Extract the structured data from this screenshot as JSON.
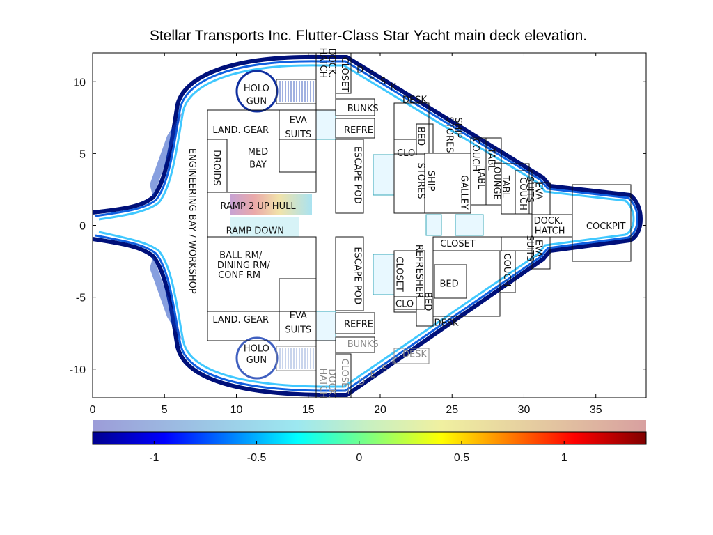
{
  "title": "Stellar Transports Inc. Flutter-Class Star Yacht main deck elevation.",
  "axes": {
    "xlim": [
      0,
      38.5
    ],
    "ylim": [
      -12,
      12
    ],
    "x_ticks": [
      0,
      5,
      10,
      15,
      20,
      25,
      30,
      35
    ],
    "y_ticks": [
      10,
      5,
      0,
      -5,
      -10
    ]
  },
  "colorbar": {
    "range": [
      -1.3,
      1.4
    ],
    "ticks": [
      -1,
      -0.5,
      0,
      0.5,
      1
    ],
    "colormap": "jet"
  },
  "colors": {
    "hull_dark": "#00107a",
    "hull_mid": "#1060e0",
    "hull_light": "#40c8ff",
    "hatch": "#38a8b8",
    "wall": "#000000"
  },
  "labels": [
    {
      "text": "HOLO",
      "x": 11.4,
      "y": 9.5,
      "rot": 0
    },
    {
      "text": "GUN",
      "x": 11.4,
      "y": 8.6,
      "rot": 0
    },
    {
      "text": "LAND. GEAR",
      "x": 10.3,
      "y": 6.6,
      "rot": 0
    },
    {
      "text": "EVA",
      "x": 14.3,
      "y": 7.3,
      "rot": 0
    },
    {
      "text": "SUITS",
      "x": 14.3,
      "y": 6.3,
      "rot": 0
    },
    {
      "text": "MED",
      "x": 11.5,
      "y": 5.1,
      "rot": 0
    },
    {
      "text": "BAY",
      "x": 11.5,
      "y": 4.2,
      "rot": 0
    },
    {
      "text": "DROIDS",
      "x": 8.6,
      "y": 4.0,
      "rot": 90
    },
    {
      "text": "ENGINEERING BAY / WORKSHOP",
      "x": 6.9,
      "y": 0.3,
      "rot": 90
    },
    {
      "text": "RAMP 2 UP HULL",
      "x": 11.5,
      "y": 1.3,
      "rot": 0
    },
    {
      "text": "RAMP DOWN",
      "x": 11.3,
      "y": -0.4,
      "rot": 0
    },
    {
      "text": "BALL RM/",
      "x": 10.3,
      "y": -2.1,
      "rot": 0
    },
    {
      "text": "DINING RM/",
      "x": 10.5,
      "y": -2.8,
      "rot": 0
    },
    {
      "text": "CONF RM",
      "x": 10.2,
      "y": -3.5,
      "rot": 0
    },
    {
      "text": "LAND. GEAR",
      "x": 10.3,
      "y": -6.6,
      "rot": 0
    },
    {
      "text": "EVA",
      "x": 14.3,
      "y": -6.3,
      "rot": 0
    },
    {
      "text": "SUITS",
      "x": 14.3,
      "y": -7.3,
      "rot": 0
    },
    {
      "text": "HOLO",
      "x": 11.4,
      "y": -8.6,
      "rot": 0
    },
    {
      "text": "GUN",
      "x": 11.4,
      "y": -9.4,
      "rot": 0
    },
    {
      "text": "DOCK.",
      "x": 16.6,
      "y": 11.3,
      "rot": 90
    },
    {
      "text": "HATCH",
      "x": 16.0,
      "y": 11.3,
      "rot": 90
    },
    {
      "text": "CLOSET",
      "x": 17.5,
      "y": 10.5,
      "rot": 90
    },
    {
      "text": "D",
      "x": 18.6,
      "y": 10.8,
      "rot": 0
    },
    {
      "text": "E",
      "x": 19.4,
      "y": 10.4,
      "rot": 0
    },
    {
      "text": "S",
      "x": 20.2,
      "y": 10.0,
      "rot": 0
    },
    {
      "text": "K",
      "x": 20.9,
      "y": 9.6,
      "rot": 0
    },
    {
      "text": "DESK",
      "x": 22.4,
      "y": 8.7,
      "rot": 0
    },
    {
      "text": "BUNKS",
      "x": 18.8,
      "y": 8.1,
      "rot": 0
    },
    {
      "text": "REFRE",
      "x": 18.5,
      "y": 6.6,
      "rot": 0
    },
    {
      "text": "BED",
      "x": 22.8,
      "y": 6.2,
      "rot": 90
    },
    {
      "text": "SHIP",
      "x": 25.4,
      "y": 6.8,
      "rot": 90
    },
    {
      "text": "STORES",
      "x": 24.8,
      "y": 6.3,
      "rot": 90
    },
    {
      "text": "CLO",
      "x": 21.8,
      "y": 5.0,
      "rot": 0
    },
    {
      "text": "ESCAPE POD",
      "x": 18.4,
      "y": 3.5,
      "rot": 90
    },
    {
      "text": "SHIP",
      "x": 23.5,
      "y": 3.1,
      "rot": 90
    },
    {
      "text": "STORES",
      "x": 22.8,
      "y": 3.1,
      "rot": 90
    },
    {
      "text": "GALLEY",
      "x": 25.8,
      "y": 2.3,
      "rot": 90
    },
    {
      "text": "COUCH",
      "x": 26.6,
      "y": 4.9,
      "rot": 90
    },
    {
      "text": "TABL",
      "x": 27.7,
      "y": 4.6,
      "rot": 90
    },
    {
      "text": "TABL",
      "x": 27.0,
      "y": 3.3,
      "rot": 90
    },
    {
      "text": "TABL",
      "x": 28.7,
      "y": 2.7,
      "rot": 90
    },
    {
      "text": "LOUNGE",
      "x": 28.1,
      "y": 3.1,
      "rot": 90
    },
    {
      "text": "COUCH",
      "x": 29.9,
      "y": 2.2,
      "rot": 90
    },
    {
      "text": "EVA",
      "x": 31.0,
      "y": 2.4,
      "rot": 90
    },
    {
      "text": "SUITS",
      "x": 30.4,
      "y": 2.5,
      "rot": 90
    },
    {
      "text": "DOCK.",
      "x": 31.7,
      "y": 0.3,
      "rot": 0
    },
    {
      "text": "HATCH",
      "x": 31.8,
      "y": -0.4,
      "rot": 0
    },
    {
      "text": "COCKPIT",
      "x": 35.7,
      "y": -0.1,
      "rot": 0
    },
    {
      "text": "CLOSET",
      "x": 25.4,
      "y": -1.3,
      "rot": 0
    },
    {
      "text": "ESCAPE POD",
      "x": 18.4,
      "y": -3.5,
      "rot": 90
    },
    {
      "text": "REFRESHER",
      "x": 22.7,
      "y": -3.2,
      "rot": 90
    },
    {
      "text": "CLOSET",
      "x": 21.3,
      "y": -3.4,
      "rot": 90
    },
    {
      "text": "CLO",
      "x": 21.7,
      "y": -5.5,
      "rot": 0
    },
    {
      "text": "BED",
      "x": 23.3,
      "y": -5.3,
      "rot": 90
    },
    {
      "text": "BED",
      "x": 24.8,
      "y": -4.1,
      "rot": 0
    },
    {
      "text": "COUCH",
      "x": 28.8,
      "y": -3.1,
      "rot": 90
    },
    {
      "text": "EVA",
      "x": 31.0,
      "y": -1.6,
      "rot": 90
    },
    {
      "text": "SUITS",
      "x": 30.4,
      "y": -1.6,
      "rot": 90
    },
    {
      "text": "REFRE",
      "x": 18.5,
      "y": -6.9,
      "rot": 0
    },
    {
      "text": "DESK",
      "x": 24.6,
      "y": -6.8,
      "rot": 0
    },
    {
      "text": "BUNKS",
      "x": 18.8,
      "y": -8.3,
      "rot": 0,
      "dim": true
    },
    {
      "text": "DESK",
      "x": 22.4,
      "y": -9.0,
      "rot": 0,
      "dim": true
    },
    {
      "text": "K",
      "x": 21.0,
      "y": -9.5,
      "rot": 0,
      "dim": true
    },
    {
      "text": "S",
      "x": 20.3,
      "y": -10.0,
      "rot": 0,
      "dim": true
    },
    {
      "text": "E",
      "x": 19.5,
      "y": -10.4,
      "rot": 0,
      "dim": true
    },
    {
      "text": "D",
      "x": 18.7,
      "y": -10.9,
      "rot": 0,
      "dim": true
    },
    {
      "text": "CLOSET",
      "x": 17.5,
      "y": -10.5,
      "rot": 90,
      "dim": true
    },
    {
      "text": "DOCK.",
      "x": 16.6,
      "y": -11.0,
      "rot": 90,
      "dim": true
    },
    {
      "text": "HATCH",
      "x": 16.0,
      "y": -11.0,
      "rot": 90,
      "dim": true
    }
  ]
}
